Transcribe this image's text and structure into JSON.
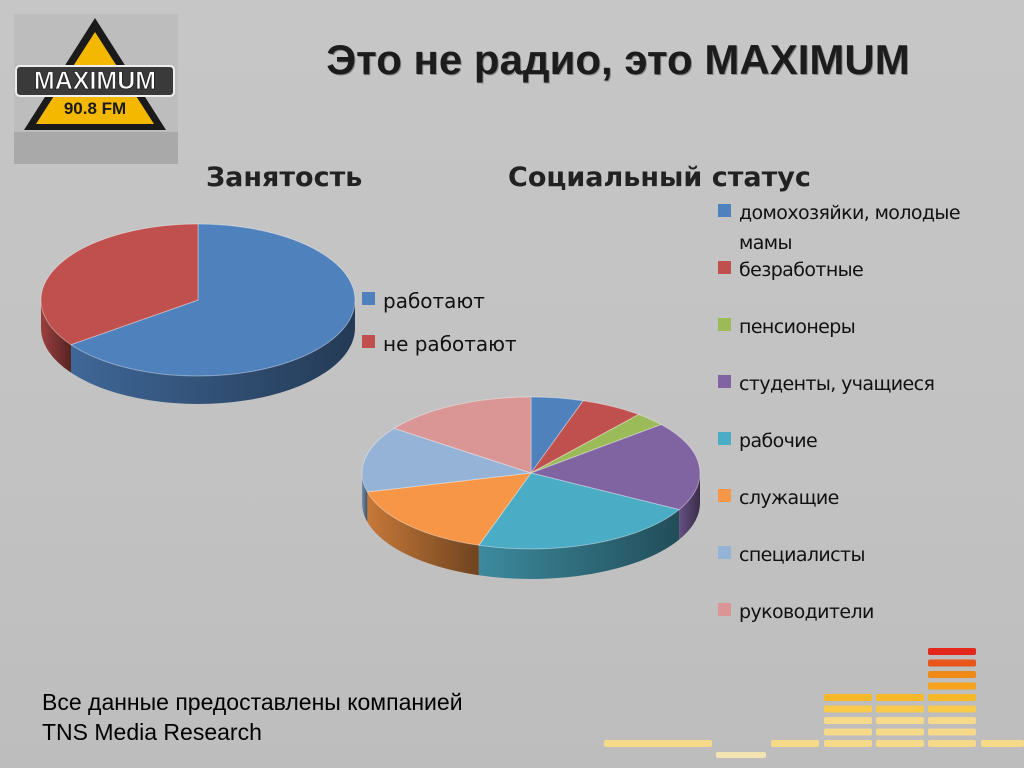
{
  "header": {
    "title": "Это не радио, это MAXIMUM"
  },
  "logo": {
    "word": "MAXIMUM",
    "frequency": "90.8 FM"
  },
  "chart_data": [
    {
      "type": "pie",
      "title": "Занятость",
      "categories": [
        "работают",
        "не работают"
      ],
      "values": [
        65,
        35
      ],
      "colors": [
        "#4f81bd",
        "#c0504d"
      ],
      "legend_position": "right",
      "style": "3d"
    },
    {
      "type": "pie",
      "title": "Социальный статус",
      "categories": [
        "домохозяйки, молодые мамы",
        "безработные",
        "пенсионеры",
        "студенты, учащиеся",
        "рабочие",
        "служащие",
        "специалисты",
        "руководители"
      ],
      "legend_lines": [
        [
          "домохозяйки, молодые",
          "мамы"
        ],
        [
          "безработные"
        ],
        [
          "пенсионеры"
        ],
        [
          "студенты, учащиеся"
        ],
        [
          "рабочие"
        ],
        [
          "служащие"
        ],
        [
          "специалисты"
        ],
        [
          "руководители"
        ]
      ],
      "values": [
        5,
        6,
        3,
        19,
        22,
        16,
        14,
        15
      ],
      "colors": [
        "#4f81bd",
        "#c0504d",
        "#9bbb59",
        "#8064a2",
        "#4bacc6",
        "#f79646",
        "#95b3d7",
        "#d99694"
      ],
      "legend_position": "right",
      "style": "3d"
    }
  ],
  "footer": {
    "line1": "Все данные предоставлены компанией",
    "line2": "TNS Media Research"
  }
}
